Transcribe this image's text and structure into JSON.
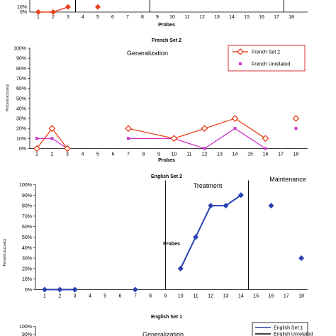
{
  "chart_data": [
    {
      "type": "line",
      "title": "",
      "xlabel": "Probes",
      "ylabel": "",
      "categories": [
        "1",
        "2",
        "3",
        "4",
        "5",
        "6",
        "7",
        "8",
        "9",
        "10",
        "11",
        "12",
        "13",
        "14",
        "15",
        "16",
        "17",
        "18"
      ],
      "y_ticks_visible": [
        "10%",
        "0%"
      ],
      "ylim": [
        0,
        100
      ],
      "partial": "top-cropped",
      "series": [
        {
          "name": "",
          "color": "#e8401c",
          "marker": "diamond-filled",
          "points": [
            [
              1,
              0
            ],
            [
              2,
              0
            ],
            [
              3,
              10
            ]
          ]
        },
        {
          "name": "",
          "color": "#e8401c",
          "marker": "diamond-filled",
          "points": [
            [
              5,
              10
            ]
          ]
        }
      ],
      "phase_lines_after": [
        3.5,
        8.5,
        17.5
      ]
    },
    {
      "type": "line",
      "title": "French Set 2",
      "xlabel": "Probes",
      "ylabel": "Percent accuracy",
      "categories": [
        "1",
        "2",
        "3",
        "4",
        "5",
        "6",
        "7",
        "8",
        "9",
        "10",
        "11",
        "12",
        "13",
        "14",
        "15",
        "16",
        "17",
        "18"
      ],
      "y_ticks": [
        "0%",
        "10%",
        "20%",
        "30%",
        "40%",
        "50%",
        "60%",
        "70%",
        "80%",
        "90%",
        "100%"
      ],
      "ylim": [
        0,
        100
      ],
      "annotation": "Generalization",
      "legend": {
        "position": "top-right",
        "entries": [
          "French Set 2",
          "French  Unrelated"
        ]
      },
      "series": [
        {
          "name": "French Set 2",
          "color": "#e8401c",
          "marker": "diamond-open",
          "segments": [
            [
              [
                1,
                0
              ],
              [
                2,
                20
              ],
              [
                3,
                0
              ]
            ],
            [
              [
                7,
                20
              ],
              [
                10,
                10
              ],
              [
                12,
                20
              ],
              [
                14,
                30
              ],
              [
                16,
                10
              ]
            ],
            [
              [
                18,
                30
              ]
            ]
          ]
        },
        {
          "name": "French  Unrelated",
          "color": "#cc33cc",
          "marker": "square",
          "segments": [
            [
              [
                1,
                10
              ],
              [
                2,
                10
              ],
              [
                3,
                0
              ]
            ],
            [
              [
                7,
                10
              ],
              [
                10,
                10
              ],
              [
                12,
                0
              ],
              [
                14,
                20
              ],
              [
                16,
                0
              ]
            ],
            [
              [
                18,
                20
              ]
            ]
          ]
        }
      ]
    },
    {
      "type": "line",
      "title": "English Set 2",
      "xlabel": "Probes",
      "ylabel": "Percent accuracy",
      "categories": [
        "1",
        "2",
        "3",
        "4",
        "5",
        "6",
        "7",
        "8",
        "9",
        "10",
        "11",
        "12",
        "13",
        "14",
        "15",
        "16",
        "17",
        "18"
      ],
      "y_ticks": [
        "0%",
        "10%",
        "20%",
        "30%",
        "40%",
        "50%",
        "60%",
        "70%",
        "80%",
        "90%",
        "100%"
      ],
      "ylim": [
        0,
        100
      ],
      "annotations": [
        "Treatment",
        "Maintenance"
      ],
      "phase_lines_after": [
        9,
        14.5
      ],
      "series": [
        {
          "name": "",
          "color": "#2a3fb0",
          "marker": "diamond-filled",
          "segments": [
            [
              [
                1,
                0
              ],
              [
                2,
                0
              ],
              [
                3,
                0
              ]
            ],
            [
              [
                7,
                0
              ]
            ],
            [
              [
                10,
                20
              ],
              [
                11,
                50
              ],
              [
                12,
                80
              ],
              [
                13,
                80
              ],
              [
                14,
                90
              ]
            ],
            [
              [
                16,
                80
              ]
            ],
            [
              [
                18,
                30
              ]
            ]
          ]
        }
      ]
    },
    {
      "type": "line",
      "title": "English Set 1",
      "partial": "bottom-cropped",
      "y_ticks_visible": [
        "100%",
        "90%"
      ],
      "ylim": [
        0,
        100
      ],
      "annotation": "Generalization",
      "legend": {
        "position": "top-right",
        "entries": [
          "English Set 1",
          "English Unrelated"
        ]
      },
      "series": []
    }
  ]
}
